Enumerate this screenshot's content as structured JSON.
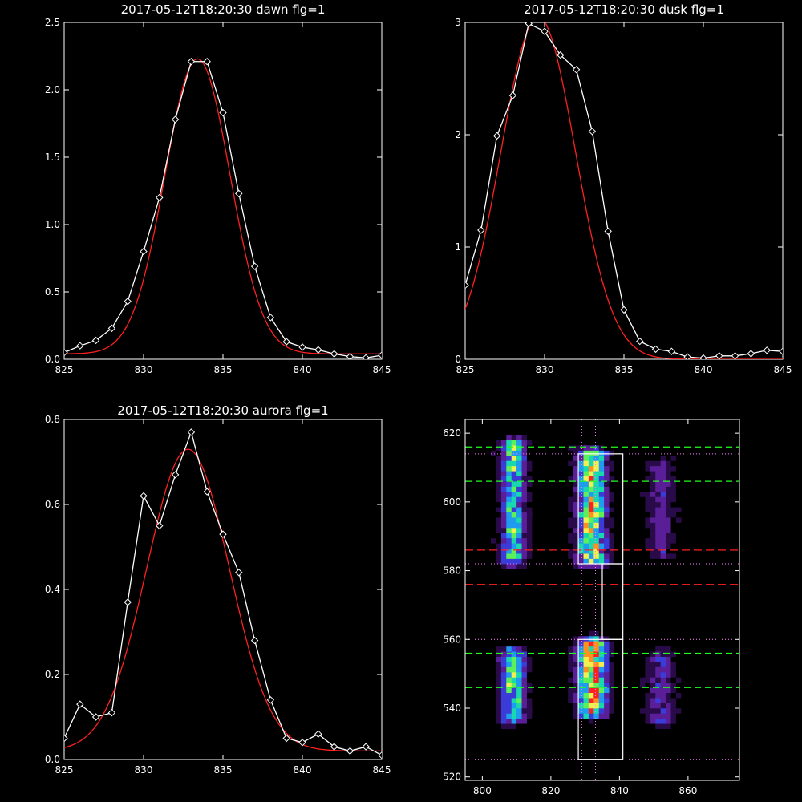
{
  "chart_data": [
    {
      "type": "line",
      "title": "2017-05-12T18:20:30 dawn flg=1",
      "xlim": [
        825,
        845
      ],
      "ylim": [
        0,
        2.5
      ],
      "xticks": [
        825,
        830,
        835,
        840,
        845
      ],
      "yticks": [
        0,
        0.5,
        1.0,
        1.5,
        2.0,
        2.5
      ],
      "ytick_labels": [
        "0.0",
        "0.5",
        "1.0",
        "1.5",
        "2.0",
        "2.5"
      ],
      "colors": {
        "data": "#ffffff",
        "fit": "#ff2020"
      },
      "series": [
        {
          "kind": "data",
          "x": [
            825,
            826,
            827,
            828,
            829,
            830,
            831,
            832,
            833,
            834,
            835,
            836,
            837,
            838,
            839,
            840,
            841,
            842,
            843,
            844,
            845
          ],
          "y": [
            0.05,
            0.1,
            0.14,
            0.23,
            0.43,
            0.8,
            1.2,
            1.78,
            2.21,
            2.21,
            1.83,
            1.23,
            0.69,
            0.31,
            0.13,
            0.09,
            0.07,
            0.04,
            0.02,
            0.01,
            0.03
          ]
        },
        {
          "kind": "fit",
          "gaussian": {
            "amplitude": 2.19,
            "center": 833.4,
            "sigma": 2.05,
            "offset": 0.04
          }
        }
      ]
    },
    {
      "type": "line",
      "title": "2017-05-12T18:20:30 dusk flg=1",
      "xlim": [
        825,
        845
      ],
      "ylim": [
        0,
        3
      ],
      "xticks": [
        825,
        830,
        835,
        840,
        845
      ],
      "yticks": [
        0,
        1,
        2,
        3
      ],
      "ytick_labels": [
        "0",
        "1",
        "2",
        "3"
      ],
      "colors": {
        "data": "#ffffff",
        "fit": "#ff2020"
      },
      "series": [
        {
          "kind": "data",
          "x": [
            825,
            826,
            827,
            828,
            829,
            830,
            831,
            832,
            833,
            834,
            835,
            836,
            837,
            838,
            839,
            840,
            841,
            842,
            843,
            844,
            845
          ],
          "y": [
            0.66,
            1.15,
            1.99,
            2.35,
            2.99,
            2.92,
            2.71,
            2.58,
            2.03,
            1.14,
            0.44,
            0.16,
            0.09,
            0.07,
            0.02,
            0.01,
            0.03,
            0.03,
            0.05,
            0.08,
            0.07
          ]
        },
        {
          "kind": "fit",
          "gaussian": {
            "amplitude": 3.05,
            "center": 829.6,
            "sigma": 2.35,
            "offset": 0.0
          }
        }
      ]
    },
    {
      "type": "line",
      "title": "2017-05-12T18:20:30 aurora flg=1",
      "xlim": [
        825,
        845
      ],
      "ylim": [
        0,
        0.8
      ],
      "xticks": [
        825,
        830,
        835,
        840,
        845
      ],
      "yticks": [
        0,
        0.2,
        0.4,
        0.6,
        0.8
      ],
      "ytick_labels": [
        "0.0",
        "0.2",
        "0.4",
        "0.6",
        "0.8"
      ],
      "colors": {
        "data": "#ffffff",
        "fit": "#ff2020"
      },
      "series": [
        {
          "kind": "data",
          "x": [
            825,
            826,
            827,
            828,
            829,
            830,
            831,
            832,
            833,
            834,
            835,
            836,
            837,
            838,
            839,
            840,
            841,
            842,
            843,
            844,
            845
          ],
          "y": [
            0.05,
            0.13,
            0.1,
            0.11,
            0.37,
            0.62,
            0.55,
            0.67,
            0.77,
            0.63,
            0.53,
            0.44,
            0.28,
            0.14,
            0.05,
            0.04,
            0.06,
            0.03,
            0.02,
            0.03,
            0.01
          ]
        },
        {
          "kind": "fit",
          "gaussian": {
            "amplitude": 0.71,
            "center": 832.8,
            "sigma": 2.6,
            "offset": 0.02
          }
        }
      ]
    },
    {
      "type": "heatmap",
      "xlim": [
        795,
        875
      ],
      "ylim": [
        519,
        624
      ],
      "xticks": [
        800,
        820,
        840,
        860
      ],
      "yticks": [
        520,
        540,
        560,
        580,
        600,
        620
      ],
      "colormap": [
        "#000000",
        "#2a0b4a",
        "#5a1f98",
        "#3b3bd8",
        "#1f9bf0",
        "#18d8b0",
        "#5ef05a",
        "#f0f050",
        "#ff9020",
        "#ff2020"
      ],
      "emission_columns": [
        {
          "x_center": 809,
          "x_width": 5,
          "y_segments": [
            [
              582,
              618,
              0.58
            ],
            [
              536,
              557,
              0.62
            ]
          ]
        },
        {
          "x_center": 832,
          "x_width": 6,
          "y_segments": [
            [
              582,
              615,
              0.8
            ],
            [
              538,
              560,
              0.9
            ]
          ]
        },
        {
          "x_center": 852,
          "x_width": 6,
          "y_segments": [
            [
              584,
              612,
              0.22
            ],
            [
              535,
              556,
              0.28
            ]
          ]
        }
      ],
      "boxes": [
        {
          "x": [
            828,
            841
          ],
          "y": [
            582,
            614
          ]
        },
        {
          "x": [
            828,
            841
          ],
          "y": [
            525,
            560
          ]
        },
        {
          "x": [
            835,
            841
          ],
          "y": [
            560,
            582
          ]
        }
      ],
      "vlines_dotted": [
        829,
        833
      ],
      "hlines_dotted": [
        614,
        582,
        560,
        525
      ],
      "hlines_green": [
        616,
        606,
        556,
        546
      ],
      "hlines_red": [
        586,
        576
      ],
      "colors": {
        "box": "#ffffff",
        "dotted": "#ff80ff",
        "green": "#20ff20",
        "red": "#ff2020"
      }
    }
  ]
}
